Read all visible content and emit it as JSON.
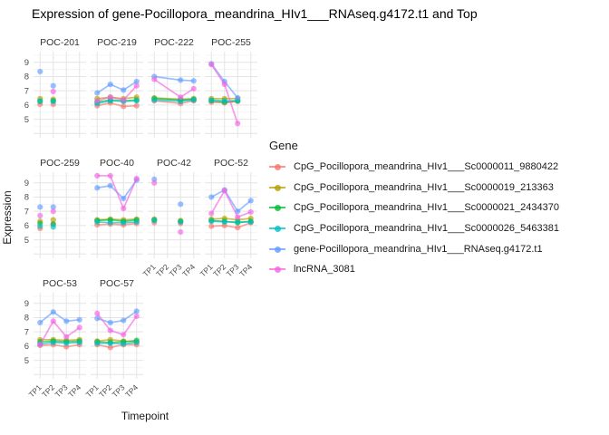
{
  "title": "Expression of gene-Pocillopora_meandrina_HIv1___RNAseq.g4172.t1 and Top",
  "axes": {
    "x_title": "Timepoint",
    "y_title": "Expression"
  },
  "legend": {
    "title": "Gene",
    "items": [
      {
        "label": "CpG_Pocillopora_meandrina_HIv1___Sc0000011_9880422",
        "color": "#F8766D"
      },
      {
        "label": "CpG_Pocillopora_meandrina_HIv1___Sc0000019_213363",
        "color": "#B79F00"
      },
      {
        "label": "CpG_Pocillopora_meandrina_HIv1___Sc0000021_2434370",
        "color": "#00BA38"
      },
      {
        "label": "CpG_Pocillopora_meandrina_HIv1___Sc0000026_5463381",
        "color": "#00BFC4"
      },
      {
        "label": "gene-Pocillopora_meandrina_HIv1___RNAseq.g4172.t1",
        "color": "#619CFF"
      },
      {
        "label": "lncRNA_3081",
        "color": "#F564E2"
      }
    ]
  },
  "chart_data": {
    "type": "line",
    "title": "Expression of gene-Pocillopora_meandrina_HIv1___RNAseq.g4172.t1 and Top",
    "xlabel": "Timepoint",
    "ylabel": "Expression",
    "x_categories": [
      "TP1",
      "TP2",
      "TP3",
      "TP4"
    ],
    "y_ticks": [
      5,
      6,
      7,
      8,
      9
    ],
    "ylim": [
      3.7,
      9.75
    ],
    "grid": true,
    "legend_position": "right",
    "series_names": [
      "CpG_Pocillopora_meandrina_HIv1___Sc0000011_9880422",
      "CpG_Pocillopora_meandrina_HIv1___Sc0000019_213363",
      "CpG_Pocillopora_meandrina_HIv1___Sc0000021_2434370",
      "CpG_Pocillopora_meandrina_HIv1___Sc0000026_5463381",
      "gene-Pocillopora_meandrina_HIv1___RNAseq.g4172.t1",
      "lncRNA_3081"
    ],
    "facets": [
      {
        "name": "POC-201",
        "row": 0,
        "col": 0,
        "draw_lines": false,
        "series": [
          [
            6.05,
            6.05,
            null,
            null
          ],
          [
            6.45,
            6.4,
            null,
            null
          ],
          [
            6.25,
            6.3,
            null,
            null
          ],
          [
            6.3,
            6.25,
            null,
            null
          ],
          [
            8.35,
            7.35,
            null,
            null
          ],
          [
            null,
            6.95,
            null,
            null
          ]
        ]
      },
      {
        "name": "POC-219",
        "row": 0,
        "col": 1,
        "draw_lines": true,
        "series": [
          [
            5.95,
            6.15,
            5.9,
            5.95
          ],
          [
            6.45,
            6.55,
            6.45,
            6.55
          ],
          [
            6.2,
            6.35,
            6.3,
            6.35
          ],
          [
            6.1,
            6.3,
            6.25,
            6.3
          ],
          [
            6.85,
            7.45,
            7.05,
            7.65
          ],
          [
            6.3,
            6.55,
            6.35,
            7.35
          ]
        ]
      },
      {
        "name": "POC-222",
        "row": 0,
        "col": 2,
        "draw_lines": true,
        "series": [
          [
            6.3,
            null,
            6.1,
            6.3
          ],
          [
            6.5,
            null,
            6.4,
            6.45
          ],
          [
            6.45,
            null,
            6.35,
            6.4
          ],
          [
            6.35,
            null,
            6.25,
            6.35
          ],
          [
            8.0,
            null,
            7.75,
            7.7
          ],
          [
            7.8,
            null,
            6.55,
            7.15
          ]
        ]
      },
      {
        "name": "POC-255",
        "row": 0,
        "col": 3,
        "draw_lines": true,
        "series": [
          [
            6.2,
            6.15,
            6.25,
            null
          ],
          [
            6.45,
            6.45,
            6.45,
            null
          ],
          [
            6.3,
            6.2,
            6.3,
            null
          ],
          [
            6.35,
            6.3,
            6.3,
            null
          ],
          [
            8.9,
            7.65,
            6.5,
            null
          ],
          [
            8.85,
            7.45,
            4.7,
            null
          ]
        ]
      },
      {
        "name": "POC-259",
        "row": 1,
        "col": 0,
        "draw_lines": false,
        "series": [
          [
            5.8,
            6.1,
            null,
            null
          ],
          [
            6.3,
            6.4,
            null,
            null
          ],
          [
            6.15,
            6.1,
            null,
            null
          ],
          [
            5.95,
            5.9,
            null,
            null
          ],
          [
            7.3,
            7.3,
            null,
            null
          ],
          [
            6.7,
            7.0,
            null,
            null
          ]
        ]
      },
      {
        "name": "POC-40",
        "row": 1,
        "col": 1,
        "draw_lines": true,
        "series": [
          [
            6.05,
            6.1,
            6.05,
            6.15
          ],
          [
            6.4,
            6.45,
            6.4,
            6.45
          ],
          [
            6.35,
            6.4,
            6.3,
            6.4
          ],
          [
            6.25,
            6.2,
            6.2,
            6.25
          ],
          [
            8.65,
            8.8,
            7.9,
            9.2
          ],
          [
            9.5,
            9.5,
            7.2,
            9.3
          ]
        ]
      },
      {
        "name": "POC-42",
        "row": 1,
        "col": 2,
        "draw_lines": false,
        "series": [
          [
            6.2,
            null,
            6.15,
            null
          ],
          [
            6.45,
            null,
            6.35,
            null
          ],
          [
            6.4,
            null,
            6.3,
            null
          ],
          [
            6.35,
            null,
            6.25,
            null
          ],
          [
            9.25,
            null,
            7.5,
            null
          ],
          [
            9.0,
            null,
            5.55,
            null
          ]
        ]
      },
      {
        "name": "POC-52",
        "row": 1,
        "col": 3,
        "draw_lines": true,
        "series": [
          [
            5.95,
            6.0,
            5.85,
            6.2
          ],
          [
            6.45,
            6.5,
            6.4,
            6.5
          ],
          [
            6.35,
            6.3,
            6.2,
            6.3
          ],
          [
            6.3,
            6.25,
            6.25,
            6.25
          ],
          [
            8.0,
            8.5,
            7.0,
            7.75
          ],
          [
            6.85,
            8.45,
            6.6,
            6.95
          ]
        ]
      },
      {
        "name": "POC-53",
        "row": 2,
        "col": 0,
        "draw_lines": true,
        "series": [
          [
            6.05,
            6.1,
            5.95,
            6.1
          ],
          [
            6.45,
            6.45,
            6.4,
            6.45
          ],
          [
            6.3,
            6.35,
            6.3,
            6.35
          ],
          [
            6.15,
            6.25,
            6.2,
            6.25
          ],
          [
            7.65,
            8.4,
            7.75,
            7.85
          ],
          [
            6.1,
            7.75,
            6.65,
            7.3
          ]
        ]
      },
      {
        "name": "POC-57",
        "row": 2,
        "col": 1,
        "draw_lines": true,
        "series": [
          [
            6.1,
            5.9,
            6.1,
            6.1
          ],
          [
            6.35,
            6.45,
            6.35,
            6.3
          ],
          [
            6.3,
            6.25,
            6.3,
            6.4
          ],
          [
            6.2,
            6.2,
            6.15,
            6.25
          ],
          [
            7.95,
            7.65,
            7.8,
            8.45
          ],
          [
            8.3,
            7.1,
            6.8,
            8.1
          ]
        ]
      }
    ]
  },
  "style_colors": {
    "grid_major": "#e4e4e4",
    "grid_minor": "#f0f0f0",
    "tick_label": "#4d4d4d",
    "strip_label": "#333333"
  }
}
